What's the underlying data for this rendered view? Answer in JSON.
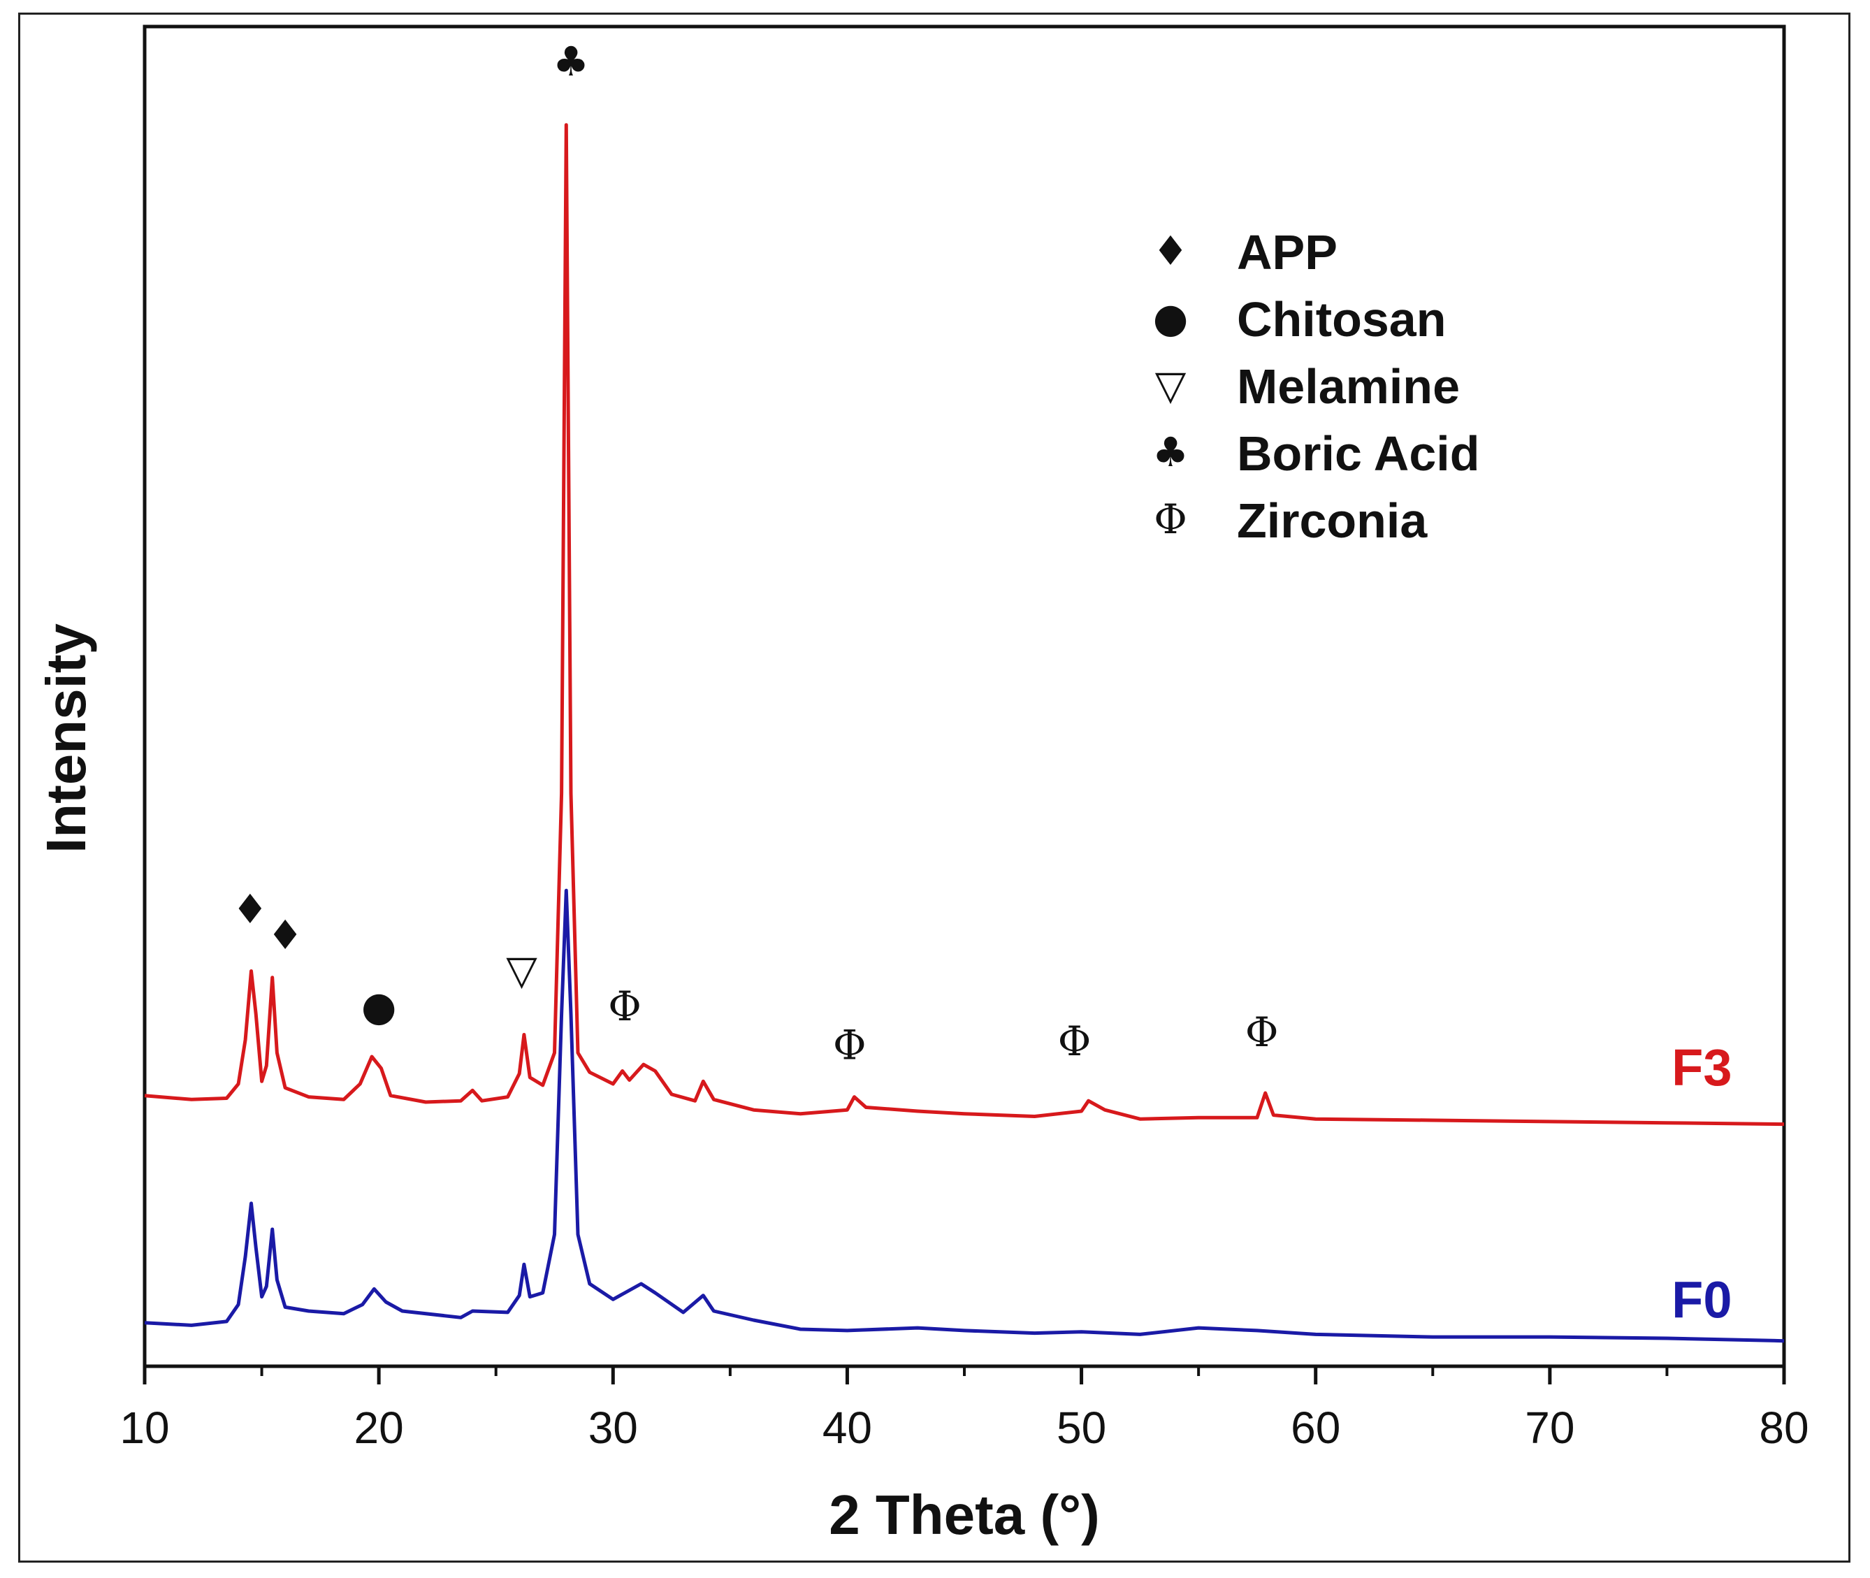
{
  "chart_data": {
    "type": "line",
    "xlabel": "2 Theta (°)",
    "ylabel": "Intensity",
    "xlim": [
      10,
      80
    ],
    "ylim": [
      0,
      100
    ],
    "xticks": [
      10,
      20,
      30,
      40,
      50,
      60,
      70,
      80
    ],
    "yticks_shown": false,
    "grid": false,
    "legend_position": "top-right",
    "series": [
      {
        "name": "F3",
        "color": "#d7191c",
        "points": [
          [
            10,
            18.7
          ],
          [
            12,
            18.4
          ],
          [
            13.5,
            18.5
          ],
          [
            14.0,
            19.6
          ],
          [
            14.3,
            23
          ],
          [
            14.55,
            28.3
          ],
          [
            14.75,
            25
          ],
          [
            15.0,
            19.8
          ],
          [
            15.2,
            21
          ],
          [
            15.45,
            27.8
          ],
          [
            15.65,
            22
          ],
          [
            16.0,
            19.3
          ],
          [
            17.0,
            18.6
          ],
          [
            18.5,
            18.4
          ],
          [
            19.2,
            19.6
          ],
          [
            19.7,
            21.7
          ],
          [
            20.1,
            20.8
          ],
          [
            20.5,
            18.7
          ],
          [
            22.0,
            18.2
          ],
          [
            23.5,
            18.3
          ],
          [
            24.0,
            19.1
          ],
          [
            24.4,
            18.3
          ],
          [
            25.5,
            18.6
          ],
          [
            26.0,
            20.4
          ],
          [
            26.2,
            23.4
          ],
          [
            26.45,
            20.1
          ],
          [
            27.0,
            19.5
          ],
          [
            27.5,
            22
          ],
          [
            27.8,
            42
          ],
          [
            28.0,
            93.5
          ],
          [
            28.2,
            42
          ],
          [
            28.5,
            22
          ],
          [
            29.0,
            20.5
          ],
          [
            30.0,
            19.6
          ],
          [
            30.4,
            20.6
          ],
          [
            30.7,
            19.9
          ],
          [
            31.3,
            21.1
          ],
          [
            31.8,
            20.6
          ],
          [
            32.5,
            18.8
          ],
          [
            33.5,
            18.3
          ],
          [
            33.85,
            19.8
          ],
          [
            34.3,
            18.4
          ],
          [
            36.0,
            17.6
          ],
          [
            38.0,
            17.3
          ],
          [
            40.0,
            17.6
          ],
          [
            40.3,
            18.6
          ],
          [
            40.8,
            17.8
          ],
          [
            43.0,
            17.5
          ],
          [
            45.0,
            17.3
          ],
          [
            48.0,
            17.1
          ],
          [
            50.0,
            17.5
          ],
          [
            50.3,
            18.3
          ],
          [
            51.0,
            17.6
          ],
          [
            52.5,
            16.9
          ],
          [
            55.0,
            17.0
          ],
          [
            57.5,
            17.0
          ],
          [
            57.85,
            18.9
          ],
          [
            58.2,
            17.2
          ],
          [
            60.0,
            16.9
          ],
          [
            65.0,
            16.8
          ],
          [
            70.0,
            16.7
          ],
          [
            75.0,
            16.6
          ],
          [
            80.0,
            16.5
          ]
        ]
      },
      {
        "name": "F0",
        "color": "#1a1aa6",
        "points": [
          [
            10,
            1.2
          ],
          [
            12,
            1.0
          ],
          [
            13.5,
            1.3
          ],
          [
            14.0,
            2.6
          ],
          [
            14.3,
            6.3
          ],
          [
            14.55,
            10.4
          ],
          [
            14.75,
            7
          ],
          [
            15.0,
            3.2
          ],
          [
            15.2,
            4.0
          ],
          [
            15.45,
            8.4
          ],
          [
            15.65,
            4.5
          ],
          [
            16.0,
            2.4
          ],
          [
            17.0,
            2.1
          ],
          [
            18.5,
            1.9
          ],
          [
            19.3,
            2.6
          ],
          [
            19.8,
            3.8
          ],
          [
            20.3,
            2.8
          ],
          [
            21.0,
            2.1
          ],
          [
            23.5,
            1.6
          ],
          [
            24.0,
            2.1
          ],
          [
            25.5,
            2.0
          ],
          [
            26.0,
            3.3
          ],
          [
            26.2,
            5.7
          ],
          [
            26.45,
            3.2
          ],
          [
            27.0,
            3.5
          ],
          [
            27.5,
            8
          ],
          [
            27.8,
            25
          ],
          [
            28.0,
            34.5
          ],
          [
            28.2,
            25
          ],
          [
            28.5,
            8
          ],
          [
            29.0,
            4.2
          ],
          [
            30.0,
            3.0
          ],
          [
            31.2,
            4.2
          ],
          [
            31.8,
            3.5
          ],
          [
            33.0,
            2.0
          ],
          [
            33.85,
            3.3
          ],
          [
            34.3,
            2.1
          ],
          [
            36.0,
            1.4
          ],
          [
            38.0,
            0.7
          ],
          [
            40.0,
            0.6
          ],
          [
            43.0,
            0.8
          ],
          [
            45.0,
            0.6
          ],
          [
            48.0,
            0.4
          ],
          [
            50.0,
            0.5
          ],
          [
            52.5,
            0.3
          ],
          [
            55.0,
            0.8
          ],
          [
            57.5,
            0.6
          ],
          [
            60.0,
            0.3
          ],
          [
            65.0,
            0.1
          ],
          [
            70.0,
            0.1
          ],
          [
            75.0,
            0.0
          ],
          [
            80.0,
            -0.2
          ]
        ]
      }
    ],
    "series_labels": [
      {
        "text": "F3",
        "x": 75.2,
        "y": 19.5
      },
      {
        "text": "F0",
        "x": 75.2,
        "y": 1.6
      }
    ],
    "peak_markers": [
      {
        "symbol": "♦",
        "x": 14.5,
        "y": 32
      },
      {
        "symbol": "♦",
        "x": 16.0,
        "y": 30
      },
      {
        "symbol": "●",
        "x": 20.0,
        "y": 24.5
      },
      {
        "symbol": "▽",
        "x": 26.1,
        "y": 27.3
      },
      {
        "symbol": "♣",
        "x": 28.2,
        "y": 97.3
      },
      {
        "symbol": "Φ",
        "x": 30.5,
        "y": 24.5
      },
      {
        "symbol": "Φ",
        "x": 40.1,
        "y": 21.5
      },
      {
        "symbol": "Φ",
        "x": 49.7,
        "y": 21.8
      },
      {
        "symbol": "Φ",
        "x": 57.7,
        "y": 22.5
      }
    ],
    "legend": [
      {
        "symbol": "♦",
        "label": "APP"
      },
      {
        "symbol": "●",
        "label": "Chitosan"
      },
      {
        "symbol": "▽",
        "label": "Melamine"
      },
      {
        "symbol": "♣",
        "label": "Boric Acid"
      },
      {
        "symbol": "Φ",
        "label": "Zirconia"
      }
    ]
  }
}
